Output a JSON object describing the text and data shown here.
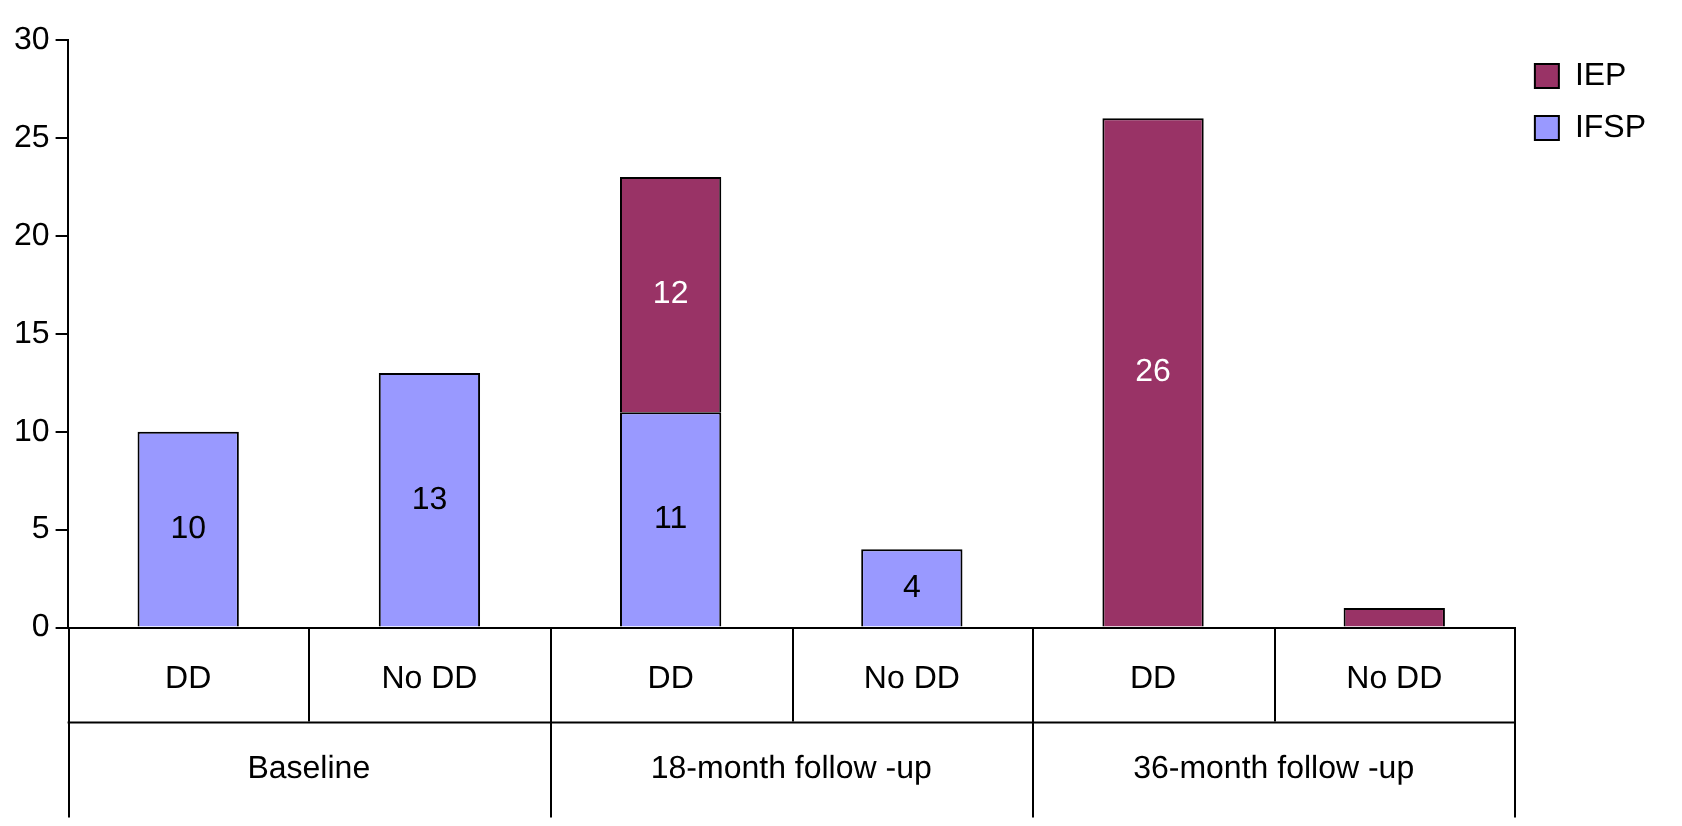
{
  "chart_data": {
    "type": "bar",
    "stacked": true,
    "categories": [
      "DD",
      "No DD",
      "DD",
      "No DD",
      "DD",
      "No DD"
    ],
    "annotations": [
      "Baseline",
      "18-month follow -up",
      "36-month follow -up"
    ],
    "series": [
      {
        "name": "IFSP",
        "color": "#9999ff",
        "values": [
          10,
          13,
          11,
          4,
          null,
          null
        ],
        "value_labels": [
          "10",
          "13",
          "11",
          "4",
          null,
          null
        ]
      },
      {
        "name": "IEP",
        "color": "#993366",
        "values": [
          null,
          null,
          12,
          null,
          26,
          1
        ],
        "value_labels": [
          null,
          null,
          "12",
          null,
          "26",
          null
        ]
      }
    ],
    "ylim": [
      0,
      30
    ],
    "yticks": [
      0,
      5,
      10,
      15,
      20,
      25,
      30
    ],
    "grid": false,
    "legend": "top right"
  }
}
